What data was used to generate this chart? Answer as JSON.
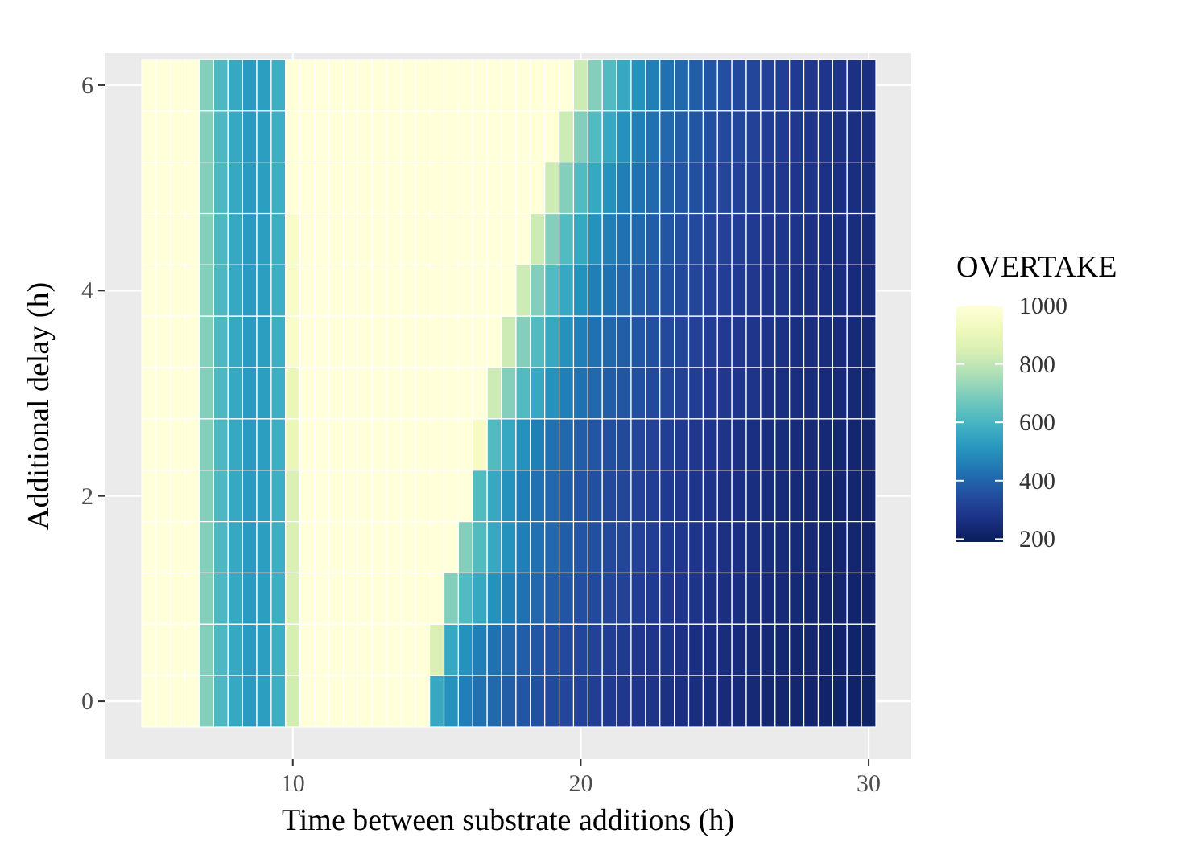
{
  "chart_data": {
    "type": "heatmap",
    "xlabel": "Time between substrate additions (h)",
    "ylabel": "Additional delay (h)",
    "legend_title": "OVERTAKE",
    "grid": true,
    "categories": [
      null,
      null,
      null,
      null,
      null,
      null,
      null,
      null,
      null,
      null,
      "10",
      null,
      null,
      null,
      null,
      null,
      null,
      null,
      null,
      null,
      null,
      null,
      null,
      null,
      null,
      null,
      null,
      null,
      null,
      null,
      "20",
      null,
      null,
      null,
      null,
      null,
      null,
      null,
      null,
      null,
      null,
      null,
      null,
      null,
      null,
      null,
      null,
      null,
      null,
      null,
      "30"
    ],
    "y_categories": [
      "6",
      null,
      null,
      null,
      "4",
      null,
      null,
      null,
      "2",
      null,
      null,
      null,
      "0"
    ],
    "clim": [
      190,
      1000
    ],
    "cticks": [
      200,
      400,
      600,
      800,
      1000
    ],
    "cells": [
      [
        1000,
        1000,
        1000,
        1000,
        700,
        610,
        560,
        520,
        530,
        580,
        1000,
        1000,
        1000,
        1000,
        1000,
        1000,
        1000,
        1000,
        1000,
        1000,
        1000,
        1000,
        1000,
        1000,
        1000,
        1000,
        1000,
        1000,
        1000,
        1000,
        820,
        700,
        620,
        560,
        500,
        460,
        430,
        410,
        390,
        370,
        355,
        340,
        330,
        320,
        310,
        300,
        290,
        285,
        280,
        270,
        265
      ],
      [
        1000,
        1000,
        1000,
        1000,
        700,
        610,
        560,
        520,
        530,
        580,
        1000,
        1000,
        1000,
        1000,
        1000,
        1000,
        1000,
        1000,
        1000,
        1000,
        1000,
        1000,
        1000,
        1000,
        1000,
        1000,
        1000,
        1000,
        1000,
        820,
        700,
        620,
        560,
        500,
        460,
        430,
        410,
        390,
        370,
        355,
        340,
        330,
        320,
        310,
        300,
        290,
        285,
        280,
        270,
        265,
        260
      ],
      [
        1000,
        1000,
        1000,
        1000,
        700,
        610,
        560,
        520,
        530,
        580,
        1000,
        1000,
        1000,
        1000,
        1000,
        1000,
        1000,
        1000,
        1000,
        1000,
        1000,
        1000,
        1000,
        1000,
        1000,
        1000,
        1000,
        1000,
        820,
        700,
        620,
        560,
        500,
        460,
        430,
        410,
        390,
        370,
        355,
        340,
        330,
        320,
        310,
        300,
        290,
        285,
        280,
        270,
        265,
        260,
        255
      ],
      [
        1000,
        1000,
        1000,
        1000,
        700,
        610,
        560,
        520,
        530,
        580,
        960,
        1000,
        1000,
        1000,
        1000,
        1000,
        1000,
        1000,
        1000,
        1000,
        1000,
        1000,
        1000,
        1000,
        1000,
        1000,
        1000,
        820,
        700,
        620,
        560,
        500,
        460,
        430,
        410,
        390,
        370,
        355,
        340,
        330,
        320,
        310,
        300,
        290,
        285,
        280,
        270,
        265,
        260,
        255,
        250
      ],
      [
        1000,
        1000,
        1000,
        1000,
        700,
        610,
        560,
        520,
        530,
        580,
        960,
        1000,
        1000,
        1000,
        1000,
        1000,
        1000,
        1000,
        1000,
        1000,
        1000,
        1000,
        1000,
        1000,
        1000,
        1000,
        820,
        700,
        620,
        560,
        500,
        460,
        430,
        410,
        390,
        370,
        355,
        340,
        330,
        320,
        310,
        300,
        290,
        285,
        280,
        270,
        265,
        260,
        255,
        250,
        245
      ],
      [
        1000,
        1000,
        1000,
        1000,
        700,
        610,
        560,
        520,
        530,
        580,
        960,
        1000,
        1000,
        1000,
        1000,
        1000,
        1000,
        1000,
        1000,
        1000,
        1000,
        1000,
        1000,
        1000,
        1000,
        820,
        700,
        620,
        560,
        500,
        460,
        430,
        410,
        390,
        370,
        355,
        340,
        330,
        320,
        310,
        300,
        290,
        285,
        280,
        270,
        265,
        260,
        255,
        250,
        245,
        240
      ],
      [
        1000,
        1000,
        1000,
        1000,
        700,
        610,
        560,
        520,
        530,
        580,
        900,
        1000,
        1000,
        1000,
        1000,
        1000,
        1000,
        1000,
        1000,
        1000,
        1000,
        1000,
        1000,
        1000,
        820,
        700,
        620,
        560,
        500,
        460,
        430,
        410,
        390,
        370,
        355,
        340,
        330,
        320,
        310,
        300,
        290,
        285,
        280,
        270,
        265,
        260,
        255,
        250,
        245,
        240,
        235
      ],
      [
        1000,
        1000,
        1000,
        1000,
        700,
        610,
        560,
        520,
        530,
        580,
        900,
        1000,
        1000,
        1000,
        1000,
        1000,
        1000,
        1000,
        1000,
        1000,
        1000,
        1000,
        1000,
        950,
        620,
        560,
        500,
        460,
        430,
        410,
        390,
        370,
        355,
        340,
        330,
        320,
        310,
        300,
        290,
        285,
        280,
        270,
        265,
        260,
        255,
        250,
        245,
        240,
        235,
        230,
        228
      ],
      [
        1000,
        1000,
        1000,
        1000,
        700,
        610,
        560,
        520,
        530,
        580,
        850,
        1000,
        1000,
        1000,
        1000,
        1000,
        1000,
        1000,
        1000,
        1000,
        1000,
        1000,
        1000,
        620,
        560,
        500,
        460,
        430,
        410,
        390,
        370,
        355,
        340,
        330,
        320,
        310,
        300,
        290,
        285,
        280,
        270,
        265,
        260,
        255,
        250,
        245,
        240,
        235,
        230,
        228,
        225
      ],
      [
        1000,
        1000,
        1000,
        1000,
        700,
        610,
        560,
        520,
        530,
        580,
        850,
        1000,
        1000,
        1000,
        1000,
        1000,
        1000,
        1000,
        1000,
        1000,
        1000,
        1000,
        700,
        620,
        560,
        500,
        460,
        430,
        410,
        390,
        370,
        355,
        340,
        330,
        320,
        310,
        300,
        290,
        285,
        280,
        270,
        265,
        260,
        255,
        250,
        245,
        240,
        235,
        230,
        228,
        225
      ],
      [
        1000,
        1000,
        1000,
        1000,
        700,
        610,
        560,
        520,
        530,
        580,
        850,
        1000,
        1000,
        1000,
        1000,
        1000,
        1000,
        1000,
        1000,
        1000,
        1000,
        700,
        620,
        560,
        500,
        460,
        430,
        410,
        390,
        370,
        355,
        340,
        330,
        320,
        310,
        300,
        290,
        285,
        280,
        270,
        265,
        260,
        255,
        250,
        245,
        240,
        235,
        230,
        228,
        225,
        222
      ],
      [
        1000,
        1000,
        1000,
        1000,
        700,
        610,
        560,
        520,
        530,
        580,
        840,
        1000,
        1000,
        1000,
        1000,
        1000,
        1000,
        1000,
        1000,
        1000,
        850,
        560,
        500,
        460,
        430,
        410,
        390,
        370,
        355,
        340,
        330,
        320,
        310,
        300,
        290,
        285,
        280,
        270,
        265,
        260,
        255,
        250,
        245,
        240,
        235,
        230,
        228,
        225,
        222,
        220,
        218
      ],
      [
        1000,
        1000,
        1000,
        1000,
        700,
        610,
        560,
        520,
        530,
        580,
        830,
        1000,
        1000,
        1000,
        1000,
        1000,
        1000,
        1000,
        1000,
        1000,
        560,
        500,
        460,
        430,
        410,
        390,
        370,
        355,
        340,
        330,
        320,
        310,
        300,
        290,
        285,
        280,
        270,
        265,
        260,
        255,
        250,
        245,
        240,
        235,
        230,
        228,
        225,
        222,
        220,
        218,
        215
      ]
    ]
  }
}
